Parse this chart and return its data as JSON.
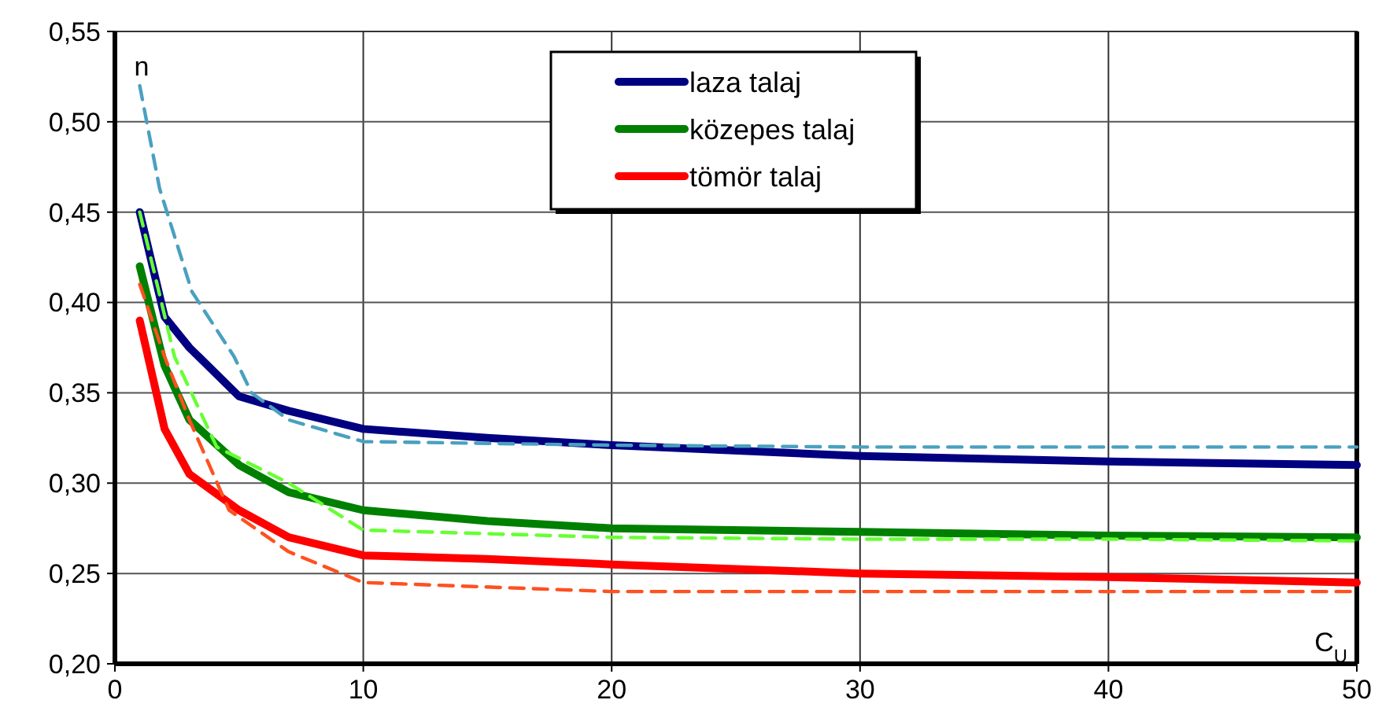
{
  "chart_data": {
    "type": "line",
    "xlabel": "C$_{U}$",
    "ylabel": "n",
    "xlim": [
      0,
      50
    ],
    "ylim": [
      0.2,
      0.55
    ],
    "xticks": [
      0,
      10,
      20,
      30,
      40,
      50
    ],
    "yticks": [
      {
        "value": 0.2,
        "label": "0,20"
      },
      {
        "value": 0.25,
        "label": "0,25"
      },
      {
        "value": 0.3,
        "label": "0,30"
      },
      {
        "value": 0.35,
        "label": "0,35"
      },
      {
        "value": 0.4,
        "label": "0,40"
      },
      {
        "value": 0.45,
        "label": "0,45"
      },
      {
        "value": 0.5,
        "label": "0,50"
      },
      {
        "value": 0.55,
        "label": "0,55"
      }
    ],
    "grid": true,
    "legend": "top",
    "marker": "none",
    "series": [
      {
        "name": "laza talaj",
        "color": "#000080",
        "x": [
          1,
          2,
          3,
          5,
          7,
          10,
          15,
          20,
          30,
          40,
          50
        ],
        "values": [
          0.45,
          0.392,
          0.375,
          0.348,
          0.34,
          0.33,
          0.325,
          0.321,
          0.315,
          0.312,
          0.31
        ]
      },
      {
        "name": "közepes talaj",
        "color": "#008000",
        "x": [
          1,
          2,
          3,
          5,
          7,
          10,
          15,
          20,
          30,
          40,
          50
        ],
        "values": [
          0.42,
          0.365,
          0.335,
          0.31,
          0.295,
          0.285,
          0.279,
          0.275,
          0.273,
          0.271,
          0.27
        ]
      },
      {
        "name": "tömör talaj",
        "color": "#ff0000",
        "x": [
          1,
          2,
          3,
          5,
          7,
          10,
          15,
          20,
          30,
          40,
          50
        ],
        "values": [
          0.39,
          0.33,
          0.305,
          0.285,
          0.27,
          0.26,
          0.258,
          0.255,
          0.25,
          0.248,
          0.245
        ]
      },
      {
        "color": "#4aa0c0",
        "line_style": "dashed",
        "x": [
          1,
          1.8,
          3.1,
          4.8,
          5.5,
          7,
          10,
          20,
          30,
          40,
          50
        ],
        "values": [
          0.52,
          0.463,
          0.406,
          0.37,
          0.35,
          0.335,
          0.323,
          0.321,
          0.32,
          0.32,
          0.32
        ]
      },
      {
        "color": "#66ff33",
        "line_style": "dashed",
        "x": [
          1,
          2.4,
          4.1,
          7,
          10,
          20,
          30,
          40,
          50
        ],
        "values": [
          0.45,
          0.37,
          0.32,
          0.3,
          0.274,
          0.27,
          0.269,
          0.269,
          0.268
        ]
      },
      {
        "color": "#ff5020",
        "line_style": "dashed",
        "x": [
          1,
          2,
          3,
          4.6,
          7,
          10,
          20,
          30,
          40,
          50
        ],
        "values": [
          0.41,
          0.37,
          0.335,
          0.285,
          0.262,
          0.245,
          0.24,
          0.24,
          0.24,
          0.24
        ]
      }
    ]
  }
}
